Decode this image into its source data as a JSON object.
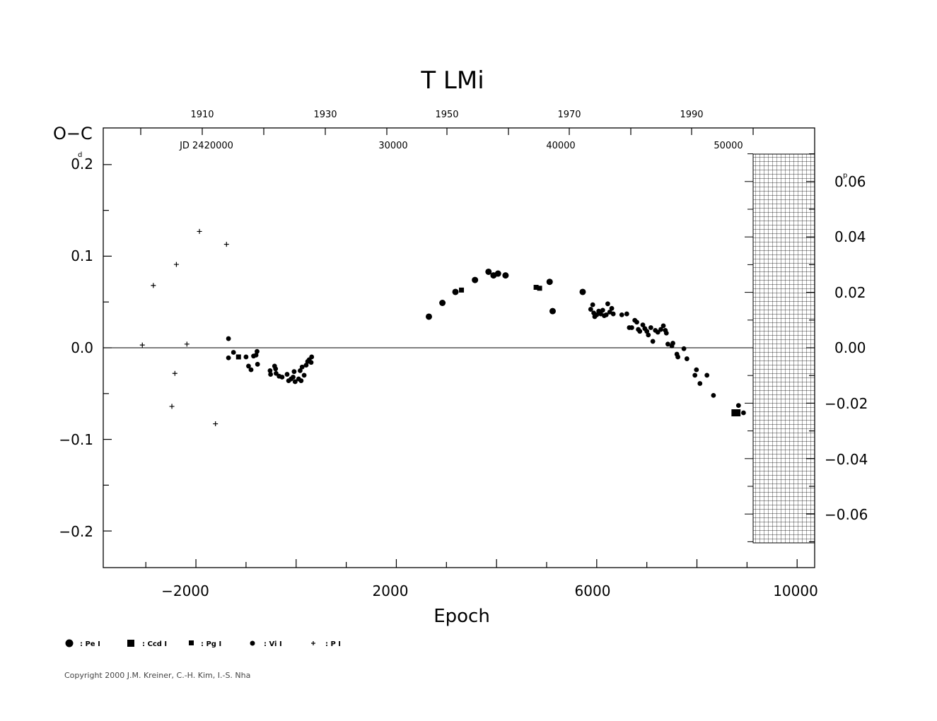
{
  "chart_data": {
    "type": "scatter",
    "title": "T  LMi",
    "xlabel": "Epoch",
    "ylabel": "O−C",
    "ylabel_unit": "d",
    "y2_unit": "p",
    "xlim": [
      -3850,
      10350
    ],
    "ylim": [
      -0.24,
      0.24
    ],
    "x_ticks": [
      -2000,
      2000,
      6000,
      10000
    ],
    "x_tick_labels": [
      "−2000",
      "2000",
      "6000",
      "10000"
    ],
    "y_ticks": [
      -0.2,
      -0.1,
      0.0,
      0.1,
      0.2
    ],
    "y_tick_labels": [
      "−0.2",
      "−0.1",
      "0.0",
      "0.1",
      "0.2"
    ],
    "y2_ticks": [
      -0.06,
      -0.04,
      -0.02,
      0.0,
      0.02,
      0.04,
      0.06
    ],
    "y2_tick_labels": [
      "−0.06",
      "−0.04",
      "−0.02",
      "0.00",
      "0.02",
      "0.04",
      "0.06"
    ],
    "top_year_labels": [
      "1910",
      "1930",
      "1950",
      "1970",
      "1990"
    ],
    "jd_labels": [
      "JD  2420000",
      "30000",
      "40000",
      "50000"
    ],
    "zero_line": true,
    "grid": false,
    "legend_position": "bottom-left",
    "series": [
      {
        "name": ": Pe  I",
        "marker": "big-circle",
        "points": [
          [
            2650,
            0.034
          ],
          [
            2920,
            0.049
          ],
          [
            3180,
            0.061
          ],
          [
            3570,
            0.074
          ],
          [
            3840,
            0.083
          ],
          [
            3940,
            0.079
          ],
          [
            4030,
            0.081
          ],
          [
            4180,
            0.079
          ],
          [
            5060,
            0.072
          ],
          [
            5120,
            0.04
          ],
          [
            5720,
            0.061
          ]
        ]
      },
      {
        "name": ": Ccd  I",
        "marker": "big-square",
        "points": [
          [
            8760,
            -0.071
          ],
          [
            8800,
            -0.071
          ]
        ]
      },
      {
        "name": ": Pg  I",
        "marker": "square",
        "points": [
          [
            -1150,
            -0.01
          ],
          [
            3300,
            0.063
          ],
          [
            4790,
            0.066
          ],
          [
            4860,
            0.065
          ]
        ]
      },
      {
        "name": ": Vi  I",
        "marker": "circle",
        "points": [
          [
            -1350,
            0.01
          ],
          [
            -1350,
            -0.011
          ],
          [
            -1250,
            -0.005
          ],
          [
            -1000,
            -0.01
          ],
          [
            -950,
            -0.02
          ],
          [
            -900,
            -0.024
          ],
          [
            -850,
            -0.009
          ],
          [
            -800,
            -0.008
          ],
          [
            -780,
            -0.004
          ],
          [
            -770,
            -0.018
          ],
          [
            -520,
            -0.025
          ],
          [
            -510,
            -0.029
          ],
          [
            -430,
            -0.02
          ],
          [
            -410,
            -0.023
          ],
          [
            -400,
            -0.028
          ],
          [
            -340,
            -0.031
          ],
          [
            -280,
            -0.032
          ],
          [
            -180,
            -0.029
          ],
          [
            -150,
            -0.036
          ],
          [
            -100,
            -0.034
          ],
          [
            -60,
            -0.032
          ],
          [
            -40,
            -0.026
          ],
          [
            -20,
            -0.037
          ],
          [
            50,
            -0.034
          ],
          [
            80,
            -0.025
          ],
          [
            100,
            -0.036
          ],
          [
            120,
            -0.021
          ],
          [
            160,
            -0.03
          ],
          [
            200,
            -0.019
          ],
          [
            230,
            -0.015
          ],
          [
            260,
            -0.013
          ],
          [
            300,
            -0.016
          ],
          [
            310,
            -0.01
          ],
          [
            5880,
            0.042
          ],
          [
            5920,
            0.047
          ],
          [
            5940,
            0.038
          ],
          [
            5960,
            0.034
          ],
          [
            6000,
            0.036
          ],
          [
            6040,
            0.04
          ],
          [
            6080,
            0.037
          ],
          [
            6120,
            0.041
          ],
          [
            6150,
            0.035
          ],
          [
            6190,
            0.036
          ],
          [
            6220,
            0.048
          ],
          [
            6260,
            0.039
          ],
          [
            6300,
            0.043
          ],
          [
            6330,
            0.037
          ],
          [
            6500,
            0.036
          ],
          [
            6600,
            0.037
          ],
          [
            6650,
            0.022
          ],
          [
            6700,
            0.022
          ],
          [
            6760,
            0.03
          ],
          [
            6800,
            0.028
          ],
          [
            6830,
            0.02
          ],
          [
            6860,
            0.018
          ],
          [
            6920,
            0.025
          ],
          [
            6960,
            0.021
          ],
          [
            7000,
            0.018
          ],
          [
            7030,
            0.014
          ],
          [
            7080,
            0.022
          ],
          [
            7120,
            0.007
          ],
          [
            7170,
            0.019
          ],
          [
            7220,
            0.017
          ],
          [
            7280,
            0.02
          ],
          [
            7330,
            0.024
          ],
          [
            7370,
            0.019
          ],
          [
            7390,
            0.016
          ],
          [
            7420,
            0.004
          ],
          [
            7500,
            0.002
          ],
          [
            7520,
            0.005
          ],
          [
            7600,
            -0.007
          ],
          [
            7620,
            -0.01
          ],
          [
            7740,
            -0.001
          ],
          [
            7800,
            -0.012
          ],
          [
            7960,
            -0.03
          ],
          [
            7990,
            -0.024
          ],
          [
            8060,
            -0.039
          ],
          [
            8200,
            -0.03
          ],
          [
            8330,
            -0.052
          ],
          [
            8830,
            -0.063
          ],
          [
            8930,
            -0.071
          ]
        ]
      },
      {
        "name": ": P  I",
        "marker": "plus",
        "points": [
          [
            -3070,
            0.003
          ],
          [
            -2850,
            0.068
          ],
          [
            -2480,
            -0.064
          ],
          [
            -2420,
            -0.028
          ],
          [
            -2390,
            0.091
          ],
          [
            -2180,
            0.004
          ],
          [
            -1930,
            0.127
          ],
          [
            -1610,
            -0.083
          ],
          [
            -1390,
            0.113
          ]
        ]
      }
    ]
  },
  "copyright": "Copyright 2000 J.M. Kreiner, C.-H. Kim, I.-S. Nha"
}
